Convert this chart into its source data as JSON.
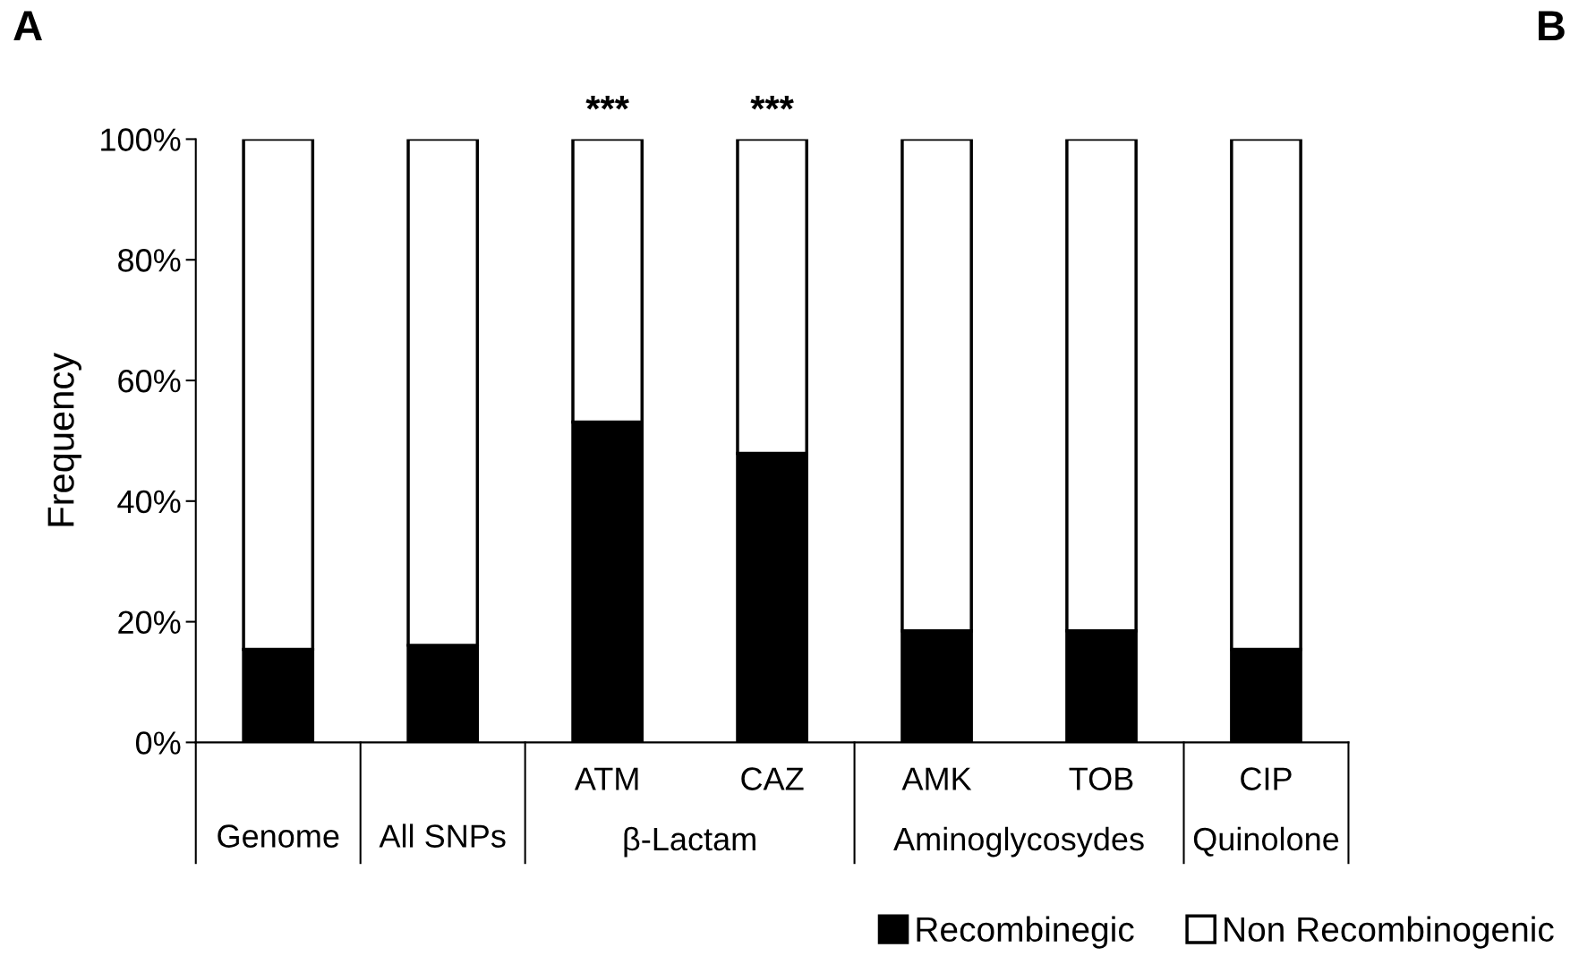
{
  "chart_data": {
    "type": "bar",
    "stacked": true,
    "ylabel": "Frequency",
    "categories": [
      "Genome",
      "All SNPs",
      "ATM",
      "CAZ",
      "AMK",
      "TOB",
      "CIP"
    ],
    "series": [
      {
        "name": "Recombinegic",
        "color": "#000000",
        "values": [
          15.4,
          16.1,
          53.1,
          47.9,
          18.5,
          18.5,
          15.4
        ]
      },
      {
        "name": "Non Recombinogenic",
        "color": "#ffffff",
        "values": [
          84.6,
          83.9,
          46.9,
          52.1,
          81.5,
          81.5,
          84.6
        ]
      }
    ],
    "ylim": [
      0,
      100
    ],
    "yticks": [
      {
        "value": 0,
        "label": "0%"
      },
      {
        "value": 20,
        "label": "20%"
      },
      {
        "value": 40,
        "label": "40%"
      },
      {
        "value": 60,
        "label": "60%"
      },
      {
        "value": 80,
        "label": "80%"
      },
      {
        "value": 100,
        "label": "100%"
      }
    ],
    "annotations": [
      {
        "text": "***",
        "x": "ATM",
        "y": 100
      },
      {
        "text": "***",
        "x": "CAZ",
        "y": 100
      },
      "β-Lactam",
      "Aminoglycosydes",
      "Quinolone",
      "A",
      "B"
    ],
    "legend": "bottom right",
    "grid": false
  }
}
